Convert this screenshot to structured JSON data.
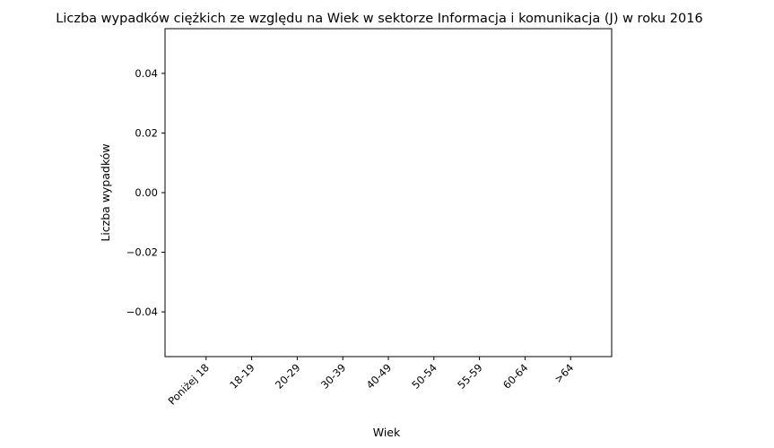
{
  "chart_data": {
    "type": "bar",
    "title": "Liczba wypadków ciężkich ze względu na Wiek w sektorze Informacja i komunikacja (J)   w roku 2016",
    "xlabel": "Wiek",
    "ylabel": "Liczba wypadków",
    "categories": [
      "Poniżej 18",
      "18-19",
      "20-29",
      "30-39",
      "40-49",
      "50-54",
      "55-59",
      "60-64",
      ">64"
    ],
    "values": [
      0,
      0,
      0,
      0,
      0,
      0,
      0,
      0,
      0
    ],
    "ylim": [
      -0.055,
      0.055
    ],
    "yticks": [
      -0.04,
      -0.02,
      0.0,
      0.02,
      0.04
    ],
    "ytick_labels": [
      "−0.04",
      "−0.02",
      "0.00",
      "0.02",
      "0.04"
    ],
    "grid": false,
    "bar_color": "#1f77b4"
  }
}
